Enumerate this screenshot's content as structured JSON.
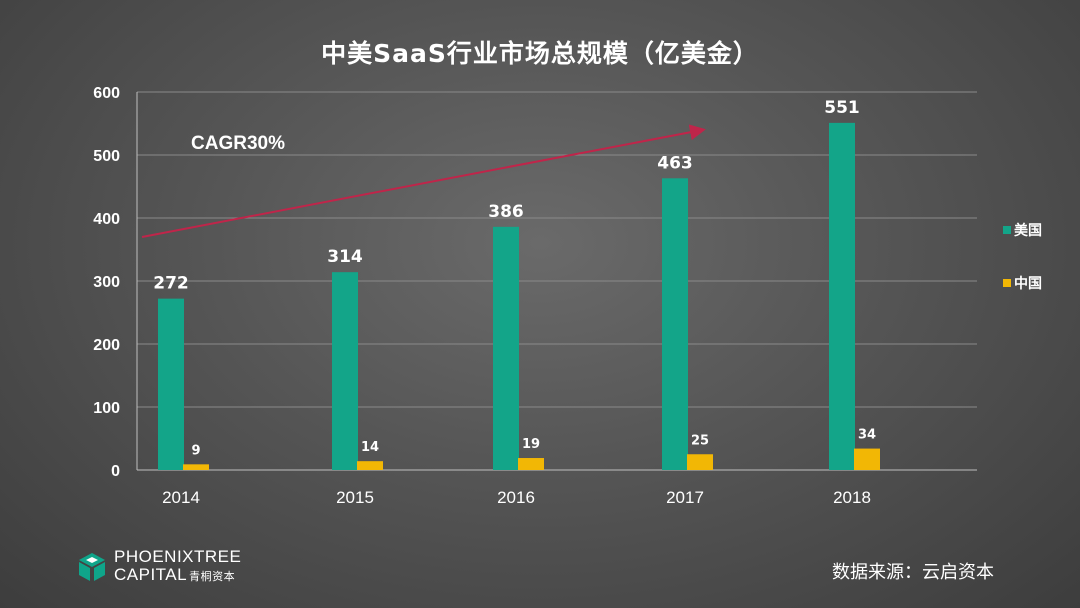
{
  "chart_data": {
    "type": "bar",
    "title": "中美SaaS行业市场总规模（亿美金）",
    "categories": [
      "2014",
      "2015",
      "2016",
      "2017",
      "2018"
    ],
    "series": [
      {
        "name": "美国",
        "values": [
          272,
          314,
          386,
          463,
          551
        ],
        "color": "#13A589"
      },
      {
        "name": "中国",
        "values": [
          9,
          14,
          19,
          25,
          34
        ],
        "color": "#F2B705"
      }
    ],
    "ylim": [
      0,
      600
    ],
    "yticks": [
      0,
      100,
      200,
      300,
      400,
      500,
      600
    ],
    "grid": true,
    "legend_position": "right",
    "annotation": {
      "label": "CAGR30%",
      "arrow_color": "#C0254A"
    }
  },
  "footer": {
    "logo_line1": "PHOENIXTREE",
    "logo_line2": "CAPITAL",
    "logo_cn": "青桐资本",
    "logo_color": "#0FA58A",
    "source": "数据来源：云启资本"
  }
}
